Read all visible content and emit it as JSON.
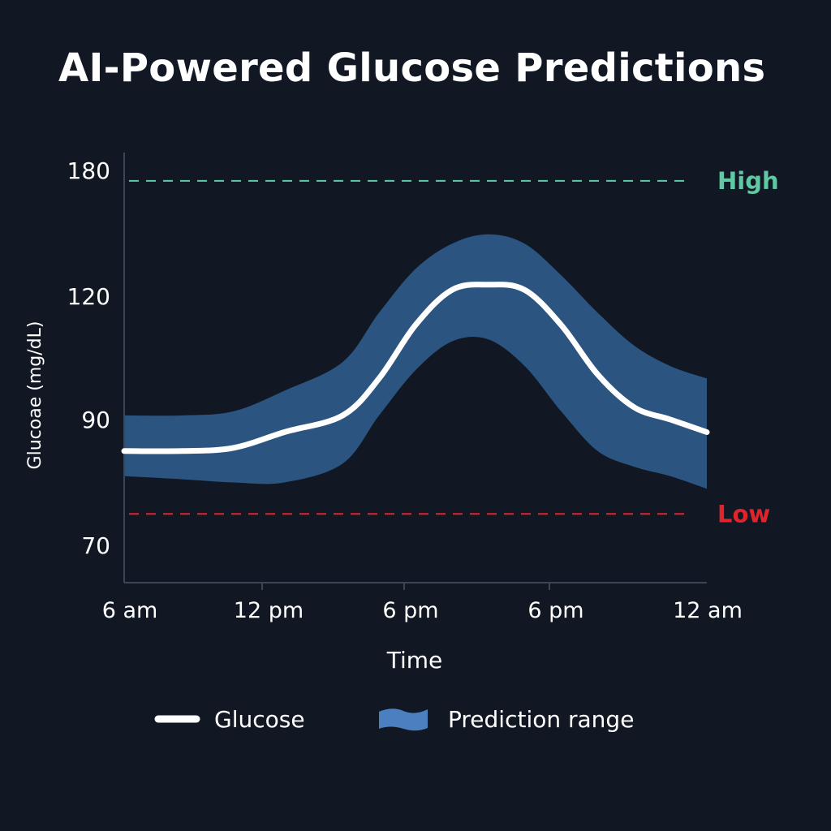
{
  "title": "AI-Powered Glucose Predictions",
  "colors": {
    "background": "#111823",
    "band": "#2c5480",
    "line": "#ffffff",
    "high": "#5ec9a3",
    "low": "#e0242c",
    "legend_band": "#4a80bf",
    "axis": "#3a4656"
  },
  "chart_data": {
    "type": "line",
    "xlabel": "Time",
    "ylabel": "Glucoae (mg/dL)",
    "categories": [
      "6 am",
      "12 pm",
      "6 pm",
      "6 pm",
      "12 am"
    ],
    "y_ticks": [
      180,
      120,
      90,
      70
    ],
    "ylim": [
      63,
      183
    ],
    "x": [
      0,
      0.8,
      1.5,
      2.2,
      3.0,
      3.5,
      4.0,
      4.5,
      5.0,
      5.5,
      6.0,
      6.5,
      7.0,
      7.5,
      8.0
    ],
    "series": [
      {
        "name": "Glucose",
        "type": "line",
        "values": [
          85,
          85,
          85.5,
          88,
          91,
          100,
          113,
          123,
          125.5,
          123,
          113,
          101,
          93,
          90,
          88
        ]
      },
      {
        "name": "Prediction range",
        "type": "band",
        "upper": [
          91,
          91,
          92,
          97,
          104,
          116,
          133,
          145,
          149.5,
          145,
          130,
          116,
          108,
          103,
          100
        ],
        "lower": [
          81,
          80.5,
          80,
          80,
          83,
          91,
          102,
          109,
          109.5,
          103,
          92,
          85,
          82.5,
          81,
          79
        ]
      }
    ],
    "thresholds": [
      {
        "name": "High",
        "value": 175
      },
      {
        "name": "Low",
        "value": 75
      }
    ],
    "grid": false,
    "legend": "bottom-center"
  }
}
